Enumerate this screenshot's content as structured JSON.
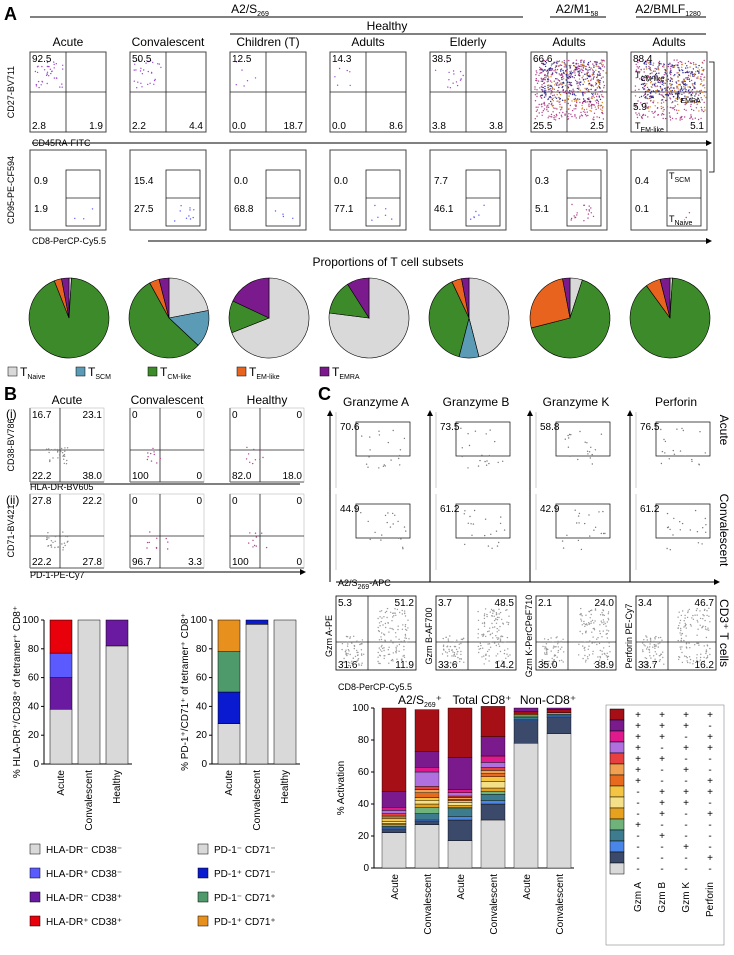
{
  "panelA": {
    "letter": "A",
    "groups": [
      {
        "label": "A2/S",
        "sub": "269"
      },
      {
        "label": "A2/M1",
        "sub": "58"
      },
      {
        "label": "A2/BMLF",
        "sub": "1280"
      }
    ],
    "healthy": "Healthy",
    "columns": [
      "Acute",
      "Convalescent",
      "Children (T)",
      "Adults",
      "Elderly",
      "Adults",
      "Adults"
    ],
    "row1_ylabel": "CD27-BV711",
    "row1_xlabel": "CD45RA-FITC",
    "row2_ylabel": "CD95-PE-CF594",
    "row2_xlabel": "CD8-PerCP-Cy5.5",
    "row1_values": [
      [
        "92.5",
        "",
        "2.8",
        "1.9"
      ],
      [
        "50.5",
        "",
        "2.2",
        "4.4"
      ],
      [
        "12.5",
        "",
        "0.0",
        "18.7"
      ],
      [
        "14.3",
        "",
        "0.0",
        "8.6"
      ],
      [
        "38.5",
        "",
        "3.8",
        "3.8"
      ],
      [
        "66.6",
        "",
        "25.5",
        "2.5"
      ],
      [
        "88.4",
        "5.9",
        "",
        ""
      ]
    ],
    "last_col_extra": [
      "5.1"
    ],
    "gate_labels": {
      "tcm": "T",
      "tcm_sub": "CM-like",
      "temra": "T",
      "temra_sub": "EMRA",
      "tem": "T",
      "tem_sub": "EM-like",
      "tscm": "T",
      "tscm_sub": "SCM",
      "tnaive": "T",
      "tnaive_sub": "Naive"
    },
    "row2_values": [
      [
        "0.9",
        "1.9"
      ],
      [
        "15.4",
        "27.5"
      ],
      [
        "0.0",
        "68.8"
      ],
      [
        "0.0",
        "77.1"
      ],
      [
        "7.7",
        "46.1"
      ],
      [
        "0.3",
        "5.1"
      ],
      [
        "0.4",
        "0.1"
      ]
    ],
    "pie_title": "Proportions of T cell subsets",
    "pie_colors": {
      "naive": "#d9d9d9",
      "scm": "#5b9bb5",
      "cm": "#3d8a2a",
      "em": "#e8641e",
      "emra": "#7b1a8c"
    },
    "pies": [
      [
        0.01,
        0.0,
        0.93,
        0.03,
        0.03
      ],
      [
        0.22,
        0.15,
        0.55,
        0.04,
        0.04
      ],
      [
        0.69,
        0.0,
        0.13,
        0.0,
        0.18
      ],
      [
        0.77,
        0.0,
        0.14,
        0.0,
        0.09
      ],
      [
        0.46,
        0.08,
        0.39,
        0.04,
        0.03
      ],
      [
        0.05,
        0.0,
        0.66,
        0.26,
        0.03
      ],
      [
        0.01,
        0.0,
        0.89,
        0.06,
        0.04
      ]
    ],
    "legend": [
      {
        "key": "naive",
        "label": "T",
        "sub": "Naive"
      },
      {
        "key": "scm",
        "label": "T",
        "sub": "SCM"
      },
      {
        "key": "cm",
        "label": "T",
        "sub": "CM-like"
      },
      {
        "key": "em",
        "label": "T",
        "sub": "EM-like"
      },
      {
        "key": "emra",
        "label": "T",
        "sub": "EMRA"
      }
    ]
  },
  "panelB": {
    "letter": "B",
    "row_labels": [
      "(i)",
      "(ii)"
    ],
    "columns": [
      "Acute",
      "Convalescent",
      "Healthy"
    ],
    "r1_ylabel": "CD38-BV786",
    "r1_xlabel": "HLA-DR-BV605",
    "r2_ylabel": "CD71-BV421",
    "r2_xlabel": "PD-1-PE-Cy7",
    "r1_values": [
      [
        "16.7",
        "23.1",
        "22.2",
        "38.0"
      ],
      [
        "0",
        "0",
        "100",
        "0"
      ],
      [
        "0",
        "0",
        "82.0",
        "18.0"
      ]
    ],
    "r2_values": [
      [
        "27.8",
        "22.2",
        "22.2",
        "27.8"
      ],
      [
        "0",
        "0",
        "96.7",
        "3.3"
      ],
      [
        "0",
        "0",
        "100",
        "0"
      ]
    ],
    "chart1_ylabel": "% HLA-DR⁺/CD38⁺ of tetramer⁺ CD8⁺",
    "chart2_ylabel": "% PD-1⁺/CD71⁺ of tetramer⁺ CD8⁺",
    "ticks": [
      "0",
      "20",
      "40",
      "60",
      "80",
      "100"
    ],
    "categories": [
      "Acute",
      "Convalescent",
      "Healthy"
    ],
    "legend1": [
      {
        "color": "#d9d9d9",
        "label": "HLA-DR⁻ CD38⁻"
      },
      {
        "color": "#5a5aff",
        "label": "HLA-DR⁺ CD38⁻"
      },
      {
        "color": "#6a1aa0",
        "label": "HLA-DR⁻ CD38⁺"
      },
      {
        "color": "#e8000b",
        "label": "HLA-DR⁺ CD38⁺"
      }
    ],
    "legend2": [
      {
        "color": "#d9d9d9",
        "label": "PD-1⁻ CD71⁻"
      },
      {
        "color": "#0a1ad0",
        "label": "PD-1⁺ CD71⁻"
      },
      {
        "color": "#4f9a6a",
        "label": "PD-1⁻ CD71⁺"
      },
      {
        "color": "#e8901e",
        "label": "PD-1⁺ CD71⁺"
      }
    ]
  },
  "panelC": {
    "letter": "C",
    "columns": [
      "Granzyme A",
      "Granzyme B",
      "Granzyme K",
      "Perforin"
    ],
    "row_labels": [
      "Acute",
      "Convalescent",
      "CD3⁺ T cells"
    ],
    "acute_values": [
      "70.6",
      "73.5",
      "58.8",
      "76.5"
    ],
    "conv_values": [
      "44.9",
      "61.2",
      "42.9",
      "61.2"
    ],
    "xlabel_apc": "A2/S",
    "xlabel_apc_sub": "269",
    "xlabel_apc_suffix": "-APC",
    "cd3_ylabels": [
      "Gzm A-PE",
      "Gzm B-AF700",
      "Gzm K-PerCPeF710",
      "Perforin PE-Cy7"
    ],
    "cd3_xlabel": "CD8-PerCP-Cy5.5",
    "cd3_values": [
      [
        "5.3",
        "51.2",
        "31.6",
        "11.9"
      ],
      [
        "3.7",
        "48.5",
        "33.6",
        "14.2"
      ],
      [
        "2.1",
        "24.0",
        "35.0",
        "38.9"
      ],
      [
        "3.4",
        "46.7",
        "33.7",
        "16.2"
      ]
    ],
    "bar_groups": [
      {
        "label": "A2/S",
        "sub": "269",
        "suffix": "⁺"
      },
      {
        "label": "Total CD8⁺",
        "sub": "",
        "suffix": ""
      },
      {
        "label": "Non-CD8⁺",
        "sub": "",
        "suffix": ""
      }
    ],
    "bar_ylabel": "% Activation",
    "bar_ticks": [
      "0",
      "20",
      "40",
      "60",
      "80",
      "100"
    ],
    "bar_categories": [
      "Acute",
      "Convalescent",
      "Acute",
      "Convalescent",
      "Acute",
      "Convalescent"
    ],
    "matrix_cols": [
      "Gzm A",
      "Gzm B",
      "Gzm K",
      "Perforin"
    ]
  },
  "chart_data": [
    {
      "type": "bar",
      "title": "",
      "ylabel": "% HLA-DR⁺/CD38⁺ of tetramer⁺ CD8⁺",
      "categories": [
        "Acute",
        "Convalescent",
        "Healthy"
      ],
      "ylim": [
        0,
        100
      ],
      "series": [
        {
          "name": "HLA-DR⁻ CD38⁻",
          "values": [
            38,
            100,
            82
          ]
        },
        {
          "name": "HLA-DR⁻ CD38⁺",
          "values": [
            22,
            0,
            18
          ]
        },
        {
          "name": "HLA-DR⁺ CD38⁻",
          "values": [
            17,
            0,
            0
          ]
        },
        {
          "name": "HLA-DR⁺ CD38⁺",
          "values": [
            23,
            0,
            0
          ]
        }
      ]
    },
    {
      "type": "bar",
      "title": "",
      "ylabel": "% PD-1⁺/CD71⁺ of tetramer⁺ CD8⁺",
      "categories": [
        "Acute",
        "Convalescent",
        "Healthy"
      ],
      "ylim": [
        0,
        100
      ],
      "series": [
        {
          "name": "PD-1⁻ CD71⁻",
          "values": [
            28,
            97,
            100
          ]
        },
        {
          "name": "PD-1⁺ CD71⁻",
          "values": [
            22,
            3,
            0
          ]
        },
        {
          "name": "PD-1⁻ CD71⁺",
          "values": [
            28,
            0,
            0
          ]
        },
        {
          "name": "PD-1⁺ CD71⁺",
          "values": [
            22,
            0,
            0
          ]
        }
      ]
    },
    {
      "type": "bar",
      "title": "",
      "ylabel": "% Activation",
      "categories": [
        "Acute",
        "Convalescent",
        "Acute",
        "Convalescent",
        "Acute",
        "Convalescent"
      ],
      "ylim": [
        0,
        100
      ],
      "stacks": [
        [
          {
            "c": "#d9d9d9",
            "v": 22
          },
          {
            "c": "#3b4a6b",
            "v": 2
          },
          {
            "c": "#4a86e8",
            "v": 1
          },
          {
            "c": "#3d7c8f",
            "v": 1
          },
          {
            "c": "#6fb27a",
            "v": 1
          },
          {
            "c": "#e6a21e",
            "v": 1
          },
          {
            "c": "#f5e08a",
            "v": 1
          },
          {
            "c": "#f4c542",
            "v": 2
          },
          {
            "c": "#e86a1e",
            "v": 1
          },
          {
            "c": "#f0a050",
            "v": 1
          },
          {
            "c": "#e84040",
            "v": 1
          },
          {
            "c": "#b070e0",
            "v": 2
          },
          {
            "c": "#e01a8c",
            "v": 2
          },
          {
            "c": "#7b1a8c",
            "v": 10
          },
          {
            "c": "#a50f15",
            "v": 52
          }
        ],
        [
          {
            "c": "#d9d9d9",
            "v": 27
          },
          {
            "c": "#3b4a6b",
            "v": 2
          },
          {
            "c": "#4a86e8",
            "v": 1
          },
          {
            "c": "#3d7c8f",
            "v": 4
          },
          {
            "c": "#6fb27a",
            "v": 4
          },
          {
            "c": "#e6a21e",
            "v": 2
          },
          {
            "c": "#f5e08a",
            "v": 2
          },
          {
            "c": "#f4c542",
            "v": 2
          },
          {
            "c": "#e86a1e",
            "v": 3
          },
          {
            "c": "#f0a050",
            "v": 2
          },
          {
            "c": "#e84040",
            "v": 2
          },
          {
            "c": "#b070e0",
            "v": 9
          },
          {
            "c": "#e01a8c",
            "v": 3
          },
          {
            "c": "#7b1a8c",
            "v": 10
          },
          {
            "c": "#a50f15",
            "v": 26
          }
        ],
        [
          {
            "c": "#d9d9d9",
            "v": 17
          },
          {
            "c": "#3b4a6b",
            "v": 13
          },
          {
            "c": "#4a86e8",
            "v": 2
          },
          {
            "c": "#3d7c8f",
            "v": 5
          },
          {
            "c": "#6fb27a",
            "v": 1
          },
          {
            "c": "#e6a21e",
            "v": 1
          },
          {
            "c": "#f5e08a",
            "v": 2
          },
          {
            "c": "#f4c542",
            "v": 1
          },
          {
            "c": "#e86a1e",
            "v": 1
          },
          {
            "c": "#f0a050",
            "v": 1
          },
          {
            "c": "#e84040",
            "v": 1
          },
          {
            "c": "#b070e0",
            "v": 2
          },
          {
            "c": "#e01a8c",
            "v": 2
          },
          {
            "c": "#7b1a8c",
            "v": 20
          },
          {
            "c": "#a50f15",
            "v": 31
          }
        ],
        [
          {
            "c": "#d9d9d9",
            "v": 30
          },
          {
            "c": "#3b4a6b",
            "v": 10
          },
          {
            "c": "#4a86e8",
            "v": 2
          },
          {
            "c": "#3d7c8f",
            "v": 4
          },
          {
            "c": "#6fb27a",
            "v": 2
          },
          {
            "c": "#e6a21e",
            "v": 2
          },
          {
            "c": "#f5e08a",
            "v": 4
          },
          {
            "c": "#f4c542",
            "v": 3
          },
          {
            "c": "#e86a1e",
            "v": 2
          },
          {
            "c": "#f0a050",
            "v": 2
          },
          {
            "c": "#e84040",
            "v": 2
          },
          {
            "c": "#b070e0",
            "v": 3
          },
          {
            "c": "#e01a8c",
            "v": 4
          },
          {
            "c": "#7b1a8c",
            "v": 12
          },
          {
            "c": "#a50f15",
            "v": 19
          }
        ],
        [
          {
            "c": "#d9d9d9",
            "v": 78
          },
          {
            "c": "#3b4a6b",
            "v": 14
          },
          {
            "c": "#4a86e8",
            "v": 1
          },
          {
            "c": "#3d7c8f",
            "v": 1
          },
          {
            "c": "#6fb27a",
            "v": 1
          },
          {
            "c": "#e6a21e",
            "v": 1
          },
          {
            "c": "#a50f15",
            "v": 2
          },
          {
            "c": "#7b1a8c",
            "v": 2
          }
        ],
        [
          {
            "c": "#d9d9d9",
            "v": 84
          },
          {
            "c": "#3b4a6b",
            "v": 10
          },
          {
            "c": "#4a86e8",
            "v": 1
          },
          {
            "c": "#3d7c8f",
            "v": 1
          },
          {
            "c": "#6fb27a",
            "v": 1
          },
          {
            "c": "#a50f15",
            "v": 2
          },
          {
            "c": "#7b1a8c",
            "v": 1
          }
        ]
      ]
    }
  ],
  "matrix": {
    "colors": [
      "#a50f15",
      "#7b1a8c",
      "#e01a8c",
      "#b070e0",
      "#e84040",
      "#f0a050",
      "#e86a1e",
      "#f4c542",
      "#f5e08a",
      "#e6a21e",
      "#6fb27a",
      "#3d7c8f",
      "#4a86e8",
      "#3b4a6b",
      "#d9d9d9"
    ],
    "rows": [
      [
        "+",
        "+",
        "+",
        "+"
      ],
      [
        "+",
        "+",
        "+",
        "-"
      ],
      [
        "+",
        "+",
        "-",
        "+"
      ],
      [
        "+",
        "-",
        "+",
        "+"
      ],
      [
        "+",
        "+",
        "-",
        "-"
      ],
      [
        "+",
        "-",
        "+",
        "-"
      ],
      [
        "+",
        "-",
        "-",
        "+"
      ],
      [
        "-",
        "+",
        "+",
        "+"
      ],
      [
        "-",
        "+",
        "+",
        "-"
      ],
      [
        "-",
        "+",
        "-",
        "+"
      ],
      [
        "+",
        "-",
        "-",
        "-"
      ],
      [
        "-",
        "+",
        "-",
        "-"
      ],
      [
        "-",
        "-",
        "+",
        "-"
      ],
      [
        "-",
        "-",
        "-",
        "+"
      ],
      [
        "-",
        "-",
        "-",
        "-"
      ]
    ]
  }
}
